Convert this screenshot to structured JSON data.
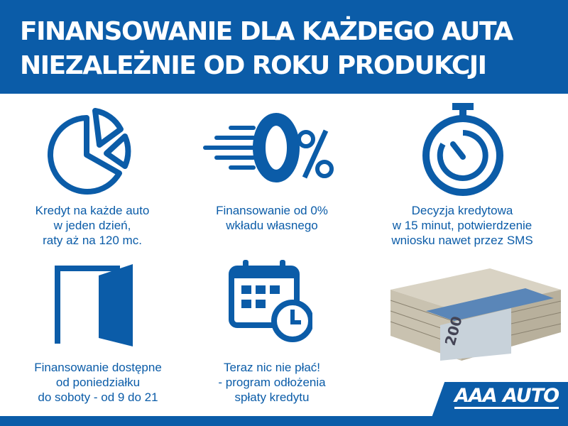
{
  "header": {
    "line1": "FINANSOWANIE DLA KAŻDEGO AUTA",
    "line2": "NIEZALEŻNIE OD ROKU PRODUKCJI"
  },
  "features": [
    {
      "icon": "pie-chart-icon",
      "lines": [
        "Kredyt na każde auto",
        "w jeden dzień,",
        "raty aż na 120 mc."
      ]
    },
    {
      "icon": "zero-percent-icon",
      "lines": [
        "Finansowanie od 0%",
        "wkładu własnego"
      ]
    },
    {
      "icon": "stopwatch-icon",
      "lines": [
        "Decyzja kredytowa",
        "w 15 minut, potwierdzenie",
        "wniosku nawet przez SMS"
      ]
    },
    {
      "icon": "open-door-icon",
      "lines": [
        "Finansowanie dostępne",
        "od poniedziałku",
        "do soboty - od 9 do 21"
      ]
    },
    {
      "icon": "calendar-clock-icon",
      "lines": [
        "Teraz nic nie płać!",
        "- program odłożenia",
        "spłaty kredytu"
      ]
    }
  ],
  "banknote": {
    "denomination": "200"
  },
  "logo": {
    "text": "AAA AUTO"
  },
  "colors": {
    "brand_blue": "#0b5ca8",
    "white": "#ffffff"
  }
}
